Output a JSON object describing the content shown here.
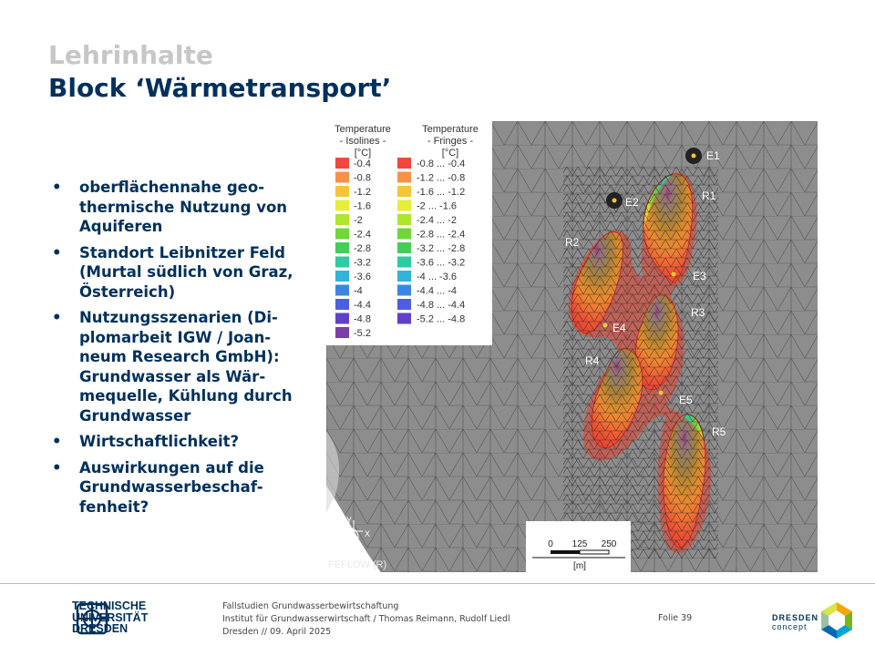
{
  "header": {
    "kicker": "Lehrinhalte",
    "title": "Block ‘Wärmetransport’"
  },
  "bullets": [
    "oberflächennahe geo-thermische Nutzung von Aquiferen",
    "Standort Leibnitzer Feld (Murtal südlich von Graz, Österreich)",
    "Nutzungsszenarien (Di-plomarbeit IGW / Joan-neum Research GmbH): Grundwasser als Wär-mequelle, Kühlung durch Grundwasser",
    "Wirtschaftlichkeit?",
    "Auswirkungen auf die Grundwasserbeschaf-fenheit?"
  ],
  "bullet_lines": [
    [
      "oberflächennahe geo-",
      "thermische Nutzung von",
      "Aquiferen"
    ],
    [
      "Standort Leibnitzer Feld",
      "(Murtal südlich von Graz,",
      "Österreich)"
    ],
    [
      "Nutzungsszenarien (Di-",
      "plomarbeit IGW / Joan-",
      "neum Research GmbH):",
      "Grundwasser als Wär-",
      "mequelle, Kühlung durch",
      "Grundwasser"
    ],
    [
      "Wirtschaftlichkeit?"
    ],
    [
      "Auswirkungen auf die",
      "Grundwasserbeschaf-",
      "fenheit?"
    ]
  ],
  "bullet_symbol": "•",
  "figure": {
    "legend_isolines_title": [
      "Temperature",
      "- Isolines -",
      "[°C]"
    ],
    "legend_fringes_title": [
      "Temperature",
      "- Fringes -",
      "[°C]"
    ],
    "isoline_values": [
      "-0.4",
      "-0.8",
      "-1.2",
      "-1.6",
      "-2",
      "-2.4",
      "-2.8",
      "-3.2",
      "-3.6",
      "-4",
      "-4.4",
      "-4.8",
      "-5.2"
    ],
    "fringe_values": [
      "-0.8 ... -0.4",
      "-1.2 ... -0.8",
      "-1.6 ... -1.2",
      "-2 ... -1.6",
      "-2.4 ... -2",
      "-2.8 ... -2.4",
      "-3.2 ... -2.8",
      "-3.6 ... -3.2",
      "-4 ... -3.6",
      "-4.4 ... -4",
      "-4.8 ... -4.4",
      "-5.2 ... -4.8"
    ],
    "legend_colors": [
      "#f0483c",
      "#f7914a",
      "#f6c437",
      "#e7ee37",
      "#aee52d",
      "#6fd73a",
      "#45cc5a",
      "#2fcaa0",
      "#32b3d7",
      "#3b86e4",
      "#4c5fe0",
      "#6040c9",
      "#7a3fa9"
    ],
    "well_labels": [
      "E1",
      "E2",
      "E3",
      "E4",
      "E5",
      "R1",
      "R2",
      "R3",
      "R4",
      "R5"
    ],
    "scale_ticks": [
      "0",
      "125",
      "250"
    ],
    "scale_unit": "[m]",
    "software": "FEFLOW (R)",
    "axis_labels": [
      "Y",
      "X"
    ]
  },
  "footer": {
    "university": [
      "TECHNISCHE",
      "UNIVERSITÄT",
      "DRESDEN"
    ],
    "course": "Fallstudien Grundwasserbewirtschaftung",
    "institute": "Institut für Grundwasserwirtschaft / Thomas Reimann, Rudolf Liedl",
    "date": "Dresden // 09. April 2025",
    "slide": "Folie 39",
    "brand": [
      "DRESDEN",
      "concept"
    ]
  },
  "colors": {
    "title_blue": "#00305d",
    "kicker_gray": "#c7c7c7",
    "mesh_gray": "#8a8a8a"
  }
}
